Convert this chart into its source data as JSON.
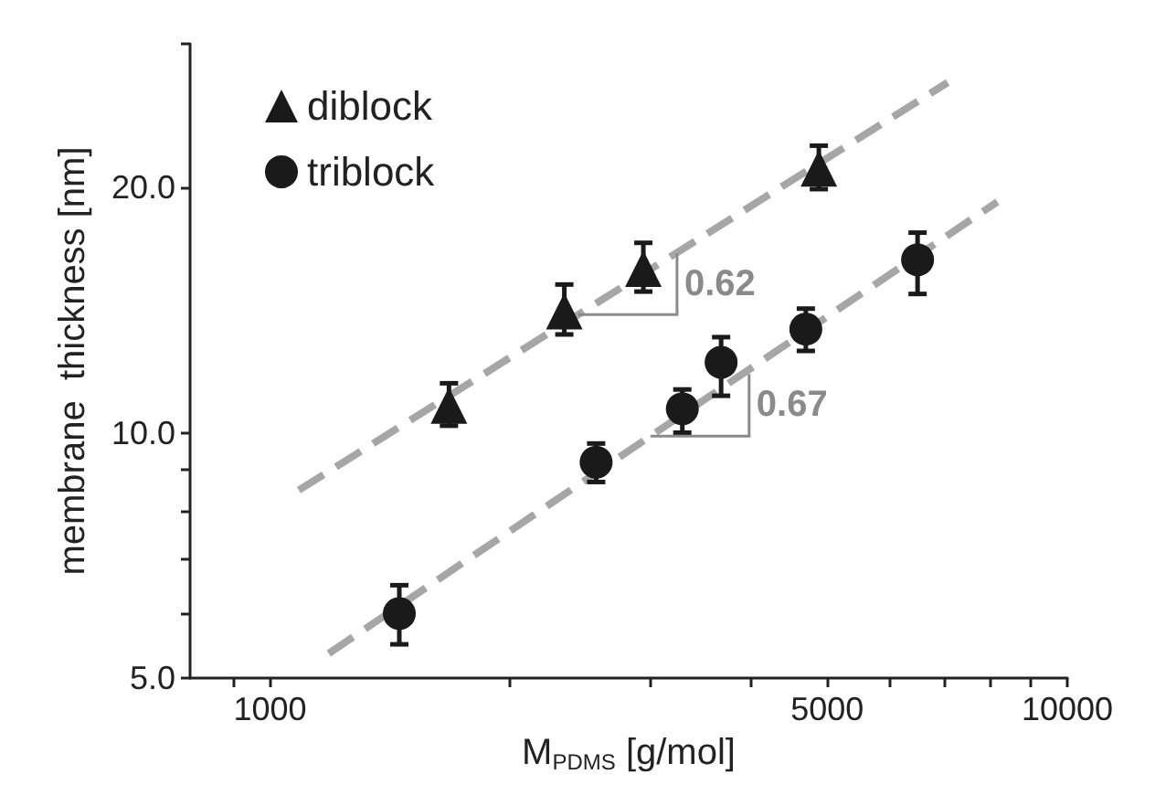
{
  "chart_data": {
    "type": "scatter",
    "xlabel": "M$_{PDMS}$ [g/mol]",
    "ylabel": "membrane  thickness [nm]",
    "log": "xy",
    "xlim": [
      794,
      10000
    ],
    "ylim": [
      5,
      30
    ],
    "xticks": [
      {
        "value": 900,
        "label": null
      },
      1000,
      {
        "value": 2000,
        "label": null
      },
      {
        "value": 3000,
        "label": null
      },
      {
        "value": 4000,
        "label": null
      },
      5000,
      {
        "value": 6000,
        "label": null
      },
      {
        "value": 7000,
        "label": null
      },
      {
        "value": 8000,
        "label": null
      },
      {
        "value": 9000,
        "label": null
      },
      10000
    ],
    "yticks": [
      {
        "value": 5,
        "label": "5.0"
      },
      {
        "value": 6,
        "label": null
      },
      {
        "value": 7,
        "label": null
      },
      {
        "value": 8,
        "label": null
      },
      {
        "value": 9,
        "label": null
      },
      {
        "value": 10,
        "label": "10.0"
      },
      {
        "value": 20,
        "label": "20.0"
      },
      {
        "value": 30,
        "label": null
      }
    ],
    "grid": false,
    "legend": "top left",
    "series": [
      {
        "name": "diblock",
        "marker": "triangle",
        "color": "#1a1a1a",
        "x": [
          1677,
          2340,
          2940,
          4880
        ],
        "values": [
          10.8,
          14.1,
          15.9,
          21.1
        ],
        "errors": [
          [
            10.2,
            11.5
          ],
          [
            13.2,
            15.2
          ],
          [
            14.9,
            17.1
          ],
          [
            19.9,
            22.5
          ]
        ]
      },
      {
        "name": "triblock",
        "marker": "circle",
        "color": "#1a1a1a",
        "x": [
          1453,
          2565,
          3290,
          3680,
          4700,
          6490
        ],
        "values": [
          6.0,
          9.2,
          10.7,
          12.2,
          13.4,
          16.3
        ],
        "errors": [
          [
            5.5,
            6.5
          ],
          [
            8.7,
            9.7
          ],
          [
            10.0,
            11.3
          ],
          [
            11.1,
            13.1
          ],
          [
            12.6,
            14.2
          ],
          [
            14.8,
            17.6
          ]
        ]
      },
      {
        "type": "line",
        "marker": "none",
        "line_style": "dashed",
        "color": "#a6a6a6",
        "x": [
          1087,
          7080
        ],
        "values": [
          8.5,
          26.9
        ]
      },
      {
        "type": "line",
        "marker": "none",
        "line_style": "dashed",
        "color": "#a6a6a6",
        "x": [
          1185,
          8170
        ],
        "values": [
          5.36,
          19.2
        ]
      }
    ],
    "annotations": [
      {
        "text": "0.62",
        "x": 3240,
        "y": 16.6
      },
      {
        "text": "0.67",
        "x": 3990,
        "y": 11.8
      }
    ]
  }
}
